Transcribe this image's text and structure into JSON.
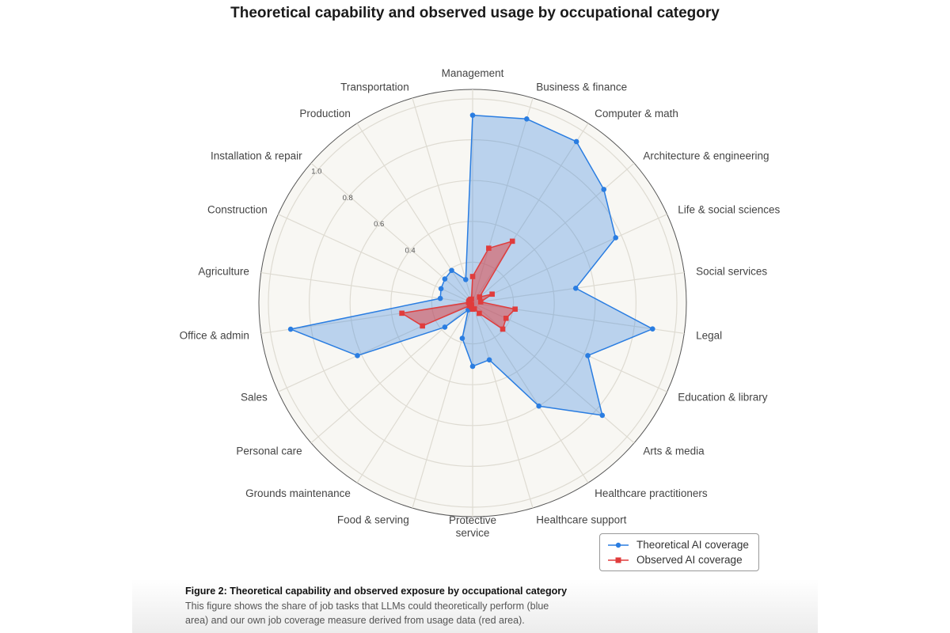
{
  "title": "Theoretical capability and observed usage by occupational category",
  "chart_data": {
    "type": "radar",
    "title": "Theoretical capability and observed usage by occupational category",
    "categories": [
      "Management",
      "Business & finance",
      "Computer & math",
      "Architecture & engineering",
      "Life & social sciences",
      "Social services",
      "Legal",
      "Education & library",
      "Arts & media",
      "Healthcare practitioners",
      "Healthcare support",
      "Protective service",
      "Food & serving",
      "Grounds maintenance",
      "Personal care",
      "Sales",
      "Office & admin",
      "Agriculture",
      "Construction",
      "Installation & repair",
      "Production",
      "Transportation"
    ],
    "radial_ticks": [
      "0.4",
      "0.6",
      "0.8",
      "1.0"
    ],
    "rlim": [
      0,
      1.0
    ],
    "grid": true,
    "legend_position": "bottom-right",
    "series": [
      {
        "name": "Theoretical AI coverage",
        "color": "#2a7de1",
        "marker": "circle",
        "values": [
          0.92,
          0.94,
          0.94,
          0.85,
          0.77,
          0.51,
          0.89,
          0.62,
          0.84,
          0.6,
          0.29,
          0.31,
          0.18,
          0.04,
          0.18,
          0.62,
          0.9,
          0.16,
          0.17,
          0.18,
          0.19,
          0.12
        ]
      },
      {
        "name": "Observed AI coverage",
        "color": "#e03c3c",
        "marker": "square",
        "values": [
          0.13,
          0.28,
          0.36,
          0.045,
          0.105,
          0.04,
          0.21,
          0.18,
          0.195,
          0.06,
          0.03,
          0.03,
          0.02,
          0.01,
          0.02,
          0.27,
          0.35,
          0.02,
          0.02,
          0.02,
          0.02,
          0.02
        ]
      }
    ]
  },
  "legend": {
    "theoretical": "Theoretical AI coverage",
    "observed": "Observed AI coverage"
  },
  "caption": {
    "title": "Figure 2: Theoretical capability and observed exposure by occupational category",
    "body": "This figure shows the share of job tasks that LLMs could theoretically perform (blue area) and our own job coverage measure derived from usage data (red area)."
  }
}
